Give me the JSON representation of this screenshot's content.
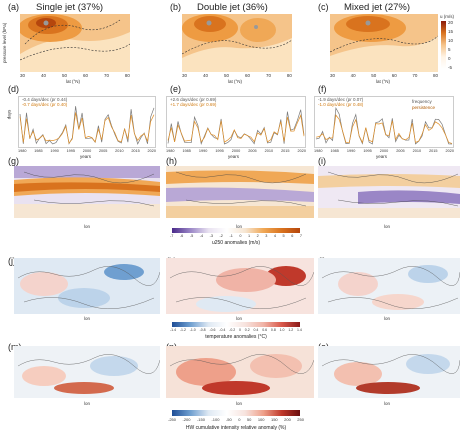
{
  "row1": {
    "panels": [
      {
        "letter": "(a)",
        "title": "Single jet (37%)"
      },
      {
        "letter": "(b)",
        "title": "Double jet (36%)"
      },
      {
        "letter": "(c)",
        "title": "Mixed jet (27%)"
      }
    ],
    "ylabel": "pressure level (hPa)",
    "xlabel": "lat (°N)",
    "xticks": [
      "30",
      "40",
      "50",
      "60",
      "70",
      "80"
    ],
    "yticks": [
      "200",
      "300",
      "400",
      "500",
      "600",
      "700",
      "800"
    ],
    "cb_title": "u (m/s)",
    "cb_ticks": [
      "20",
      "15",
      "10",
      "5",
      "0",
      "-5"
    ]
  },
  "row2": {
    "panels": [
      {
        "letter": "(d)",
        "line1": "-0.4 days/dec (pr 0.44)",
        "line2": "-0.7 days/dec (pr 0.40)"
      },
      {
        "letter": "(e)",
        "line1": "+2.6 days/dec (pr 0.69)",
        "line2": "+1.7 days/dec (pr 0.69)"
      },
      {
        "letter": "(f)",
        "line1": "-1.9 days/dec (pr 0.07)",
        "line2": "-1.0 days/dec (pr 0.48)"
      }
    ],
    "ylabel": "days",
    "xlabel": "years",
    "xticks": [
      "1980",
      "1985",
      "1990",
      "1995",
      "2000",
      "2005",
      "2010",
      "2015",
      "2020"
    ],
    "legend": [
      "frequency",
      "persistence"
    ],
    "colors": {
      "frequency": "#7a7a7a",
      "persistence": "#e0902a"
    }
  },
  "row3": {
    "panels": [
      {
        "letter": "(g)"
      },
      {
        "letter": "(h)"
      },
      {
        "letter": "(i)"
      }
    ],
    "xlabel": "lon",
    "ylabel": "lat",
    "xticks": [
      "0",
      "50",
      "100",
      "150"
    ],
    "yticks": [
      "80",
      "60",
      "40",
      "20"
    ],
    "cb_title": "u250 anomalies (m/s)",
    "cb_ticks": [
      "-7",
      "-6",
      "-5",
      "-4",
      "-3",
      "-2",
      "-1",
      "0",
      "1",
      "2",
      "3",
      "4",
      "5",
      "6",
      "7"
    ]
  },
  "row4": {
    "panels": [
      {
        "letter": "(j)"
      },
      {
        "letter": "(k)"
      },
      {
        "letter": "(l)"
      }
    ],
    "xlabel": "lon",
    "ylabel": "lat",
    "xticks": [
      "0",
      "50",
      "100",
      "150"
    ],
    "yticks": [
      "70",
      "60",
      "50",
      "40",
      "30"
    ],
    "cb_title": "temperature anomalies (°C)",
    "cb_ticks": [
      "-1.4",
      "-1.2",
      "-1.0",
      "-0.8",
      "-0.6",
      "-0.4",
      "-0.2",
      "0",
      "0.2",
      "0.4",
      "0.6",
      "0.8",
      "1.0",
      "1.2",
      "1.4"
    ]
  },
  "row5": {
    "panels": [
      {
        "letter": "(m)"
      },
      {
        "letter": "(n)"
      },
      {
        "letter": "(o)"
      }
    ],
    "xlabel": "lon",
    "ylabel": "lat",
    "xticks": [
      "0",
      "50",
      "100",
      "150"
    ],
    "yticks": [
      "70",
      "60",
      "50",
      "40"
    ],
    "cb_title": "HW cumulative intensity relative anomaly (%)",
    "cb_ticks": [
      "-250",
      "-200",
      "-150",
      "-100",
      "-50",
      "0",
      "50",
      "100",
      "150",
      "200",
      "250"
    ]
  }
}
